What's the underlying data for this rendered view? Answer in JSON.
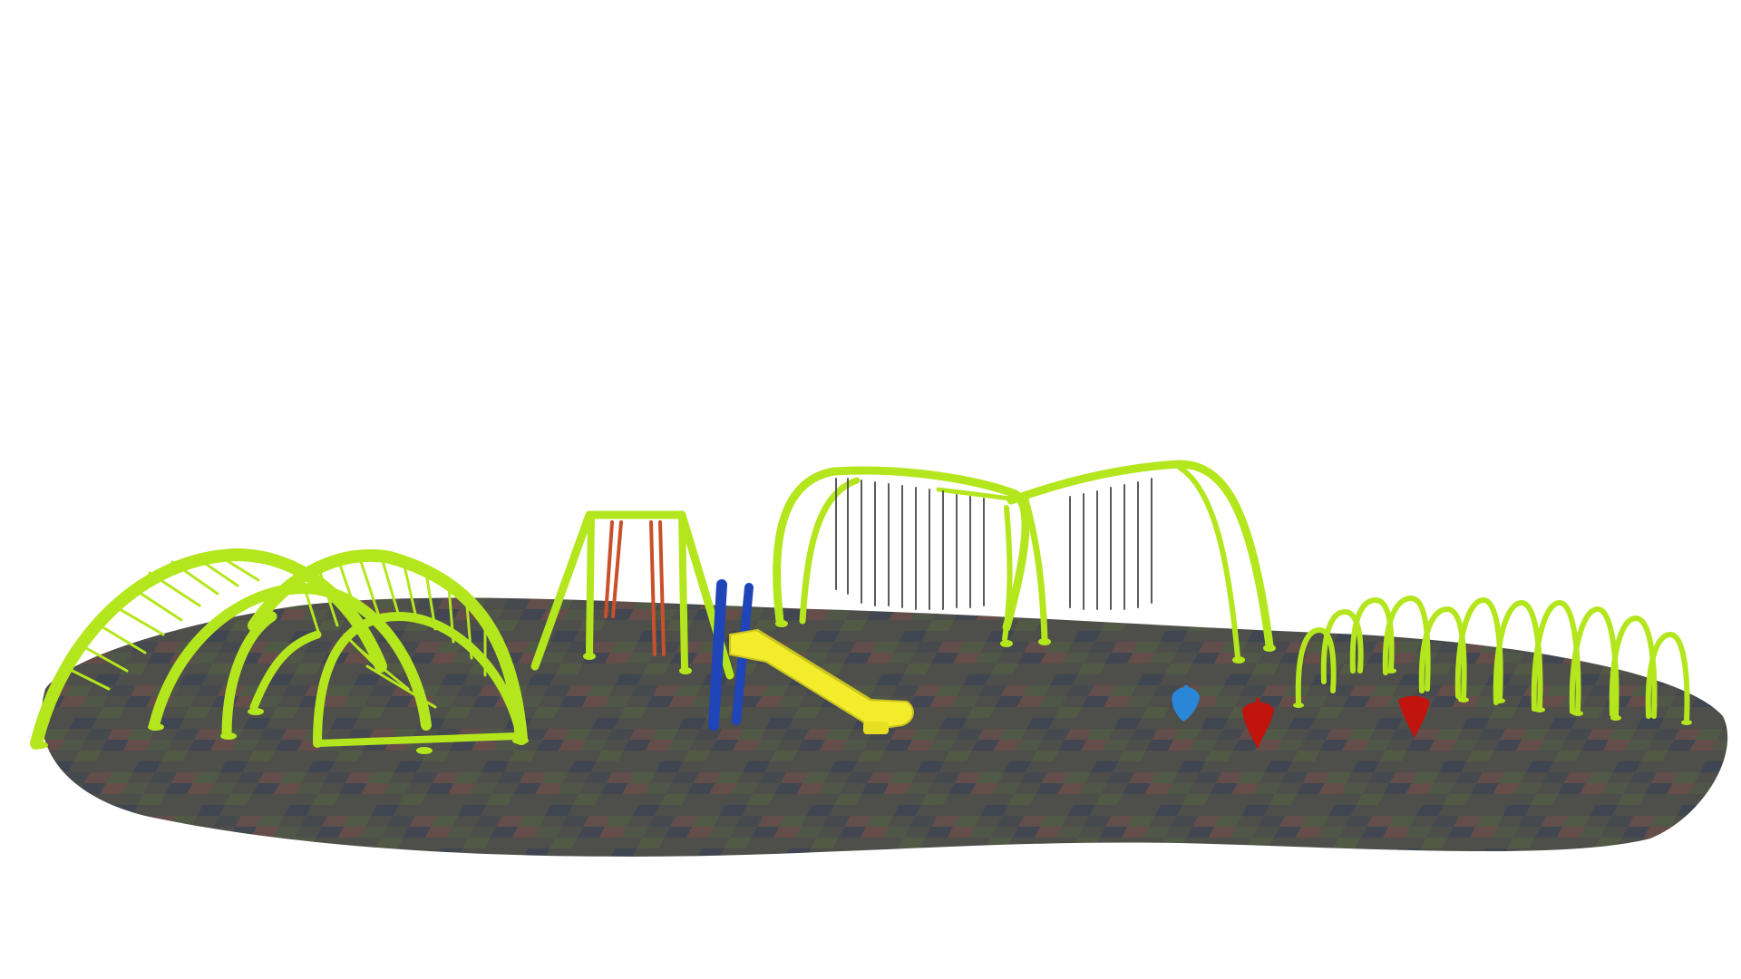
{
  "scene": {
    "subject": "playground-rendering",
    "colors": {
      "background": "#ffffff",
      "ground": "#4e4e4b",
      "tile_red": "#6f4f49",
      "tile_green": "#525d45",
      "tile_blue": "#3d4452",
      "frame_green": "#b4e61e",
      "frame_green_dark": "#8fb817",
      "swing_chain_red": "#c8502a",
      "swing_chain_gray": "#5a5a5a",
      "slide_yellow": "#f2ec2a",
      "slide_yellow_dark": "#c9c220",
      "pole_blue": "#1f45b8",
      "spring_blue": "#2a86d6",
      "spring_red": "#c0140c"
    },
    "components": [
      {
        "name": "dome-climber-arches",
        "icon": "arch-climber-icon"
      },
      {
        "name": "single-swing-frame",
        "icon": "swing-icon"
      },
      {
        "name": "yellow-slide",
        "icon": "slide-icon"
      },
      {
        "name": "double-swing-frame",
        "icon": "swing-set-icon"
      },
      {
        "name": "loop-arch-row",
        "icon": "arch-row-icon"
      },
      {
        "name": "spring-riders",
        "icon": "spring-rider-icon"
      }
    ]
  }
}
